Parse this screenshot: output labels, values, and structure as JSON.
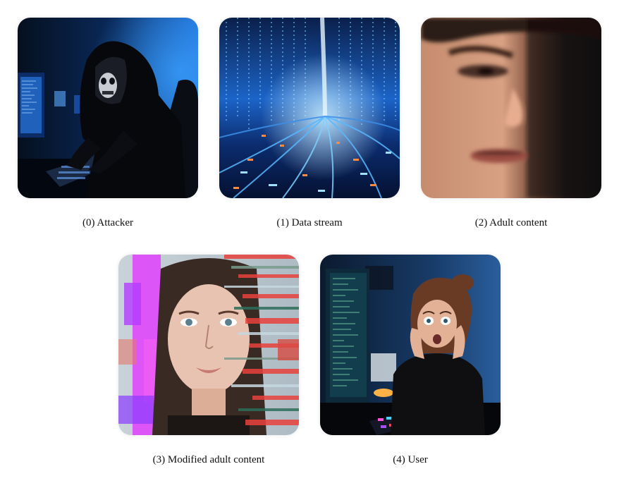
{
  "panels": [
    {
      "icon": "attacker-image",
      "caption": "(0) Attacker"
    },
    {
      "icon": "data-stream-image",
      "caption": "(1) Data stream"
    },
    {
      "icon": "adult-content-image",
      "caption": "(2) Adult content"
    },
    {
      "icon": "modified-adult-content-image",
      "caption": "(3) Modified adult content"
    },
    {
      "icon": "user-image",
      "caption": "(4) User"
    }
  ],
  "colors": {
    "background": "#ffffff",
    "caption_text": "#111111",
    "cyber_blue": "#1e6fd9",
    "glitch_magenta": "#e040fb",
    "glitch_red": "#e8413c"
  }
}
